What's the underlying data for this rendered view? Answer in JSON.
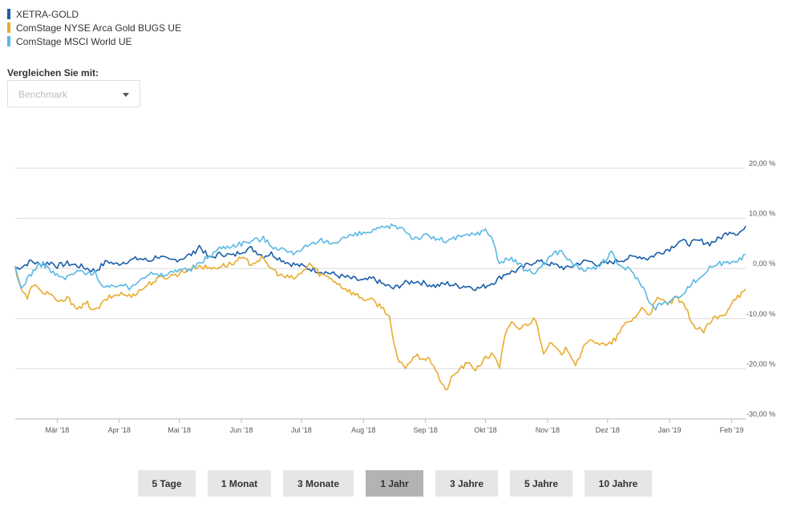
{
  "legend": [
    {
      "label": "XETRA-GOLD",
      "color": "#1a5ea8"
    },
    {
      "label": "ComStage NYSE Arca Gold BUGS UE",
      "color": "#e8ab2d"
    },
    {
      "label": "ComStage MSCI World UE",
      "color": "#5ab8e3"
    }
  ],
  "compare": {
    "label": "Vergleichen  Sie mit:",
    "placeholder": "Benchmark",
    "caret_icon": "chevron-down-icon"
  },
  "range_buttons": [
    {
      "label": "5 Tage",
      "active": false
    },
    {
      "label": "1 Monat",
      "active": false
    },
    {
      "label": "3 Monate",
      "active": false
    },
    {
      "label": "1 Jahr",
      "active": true
    },
    {
      "label": "3 Jahre",
      "active": false
    },
    {
      "label": "5 Jahre",
      "active": false
    },
    {
      "label": "10 Jahre",
      "active": false
    }
  ],
  "chart_data": {
    "type": "line",
    "x_domain": [
      "2018-02-08",
      "2019-02-08"
    ],
    "ylim": [
      -30,
      20
    ],
    "y_ticks": [
      20,
      10,
      0,
      -10,
      -20,
      -30
    ],
    "y_tick_labels": [
      "20,00 %",
      "10,00 %",
      "0,00 %",
      "-10,00 %",
      "-20,00 %",
      "-30,00 %"
    ],
    "x_ticks": [
      {
        "date": "2018-03-01",
        "label": "Mär '18"
      },
      {
        "date": "2018-04-01",
        "label": "Apr '18"
      },
      {
        "date": "2018-05-01",
        "label": "Mai '18"
      },
      {
        "date": "2018-06-01",
        "label": "Jun '18"
      },
      {
        "date": "2018-07-01",
        "label": "Jul '18"
      },
      {
        "date": "2018-08-01",
        "label": "Aug '18"
      },
      {
        "date": "2018-09-01",
        "label": "Sep '18"
      },
      {
        "date": "2018-10-01",
        "label": "Okt '18"
      },
      {
        "date": "2018-11-01",
        "label": "Nov '18"
      },
      {
        "date": "2018-12-01",
        "label": "Dez '18"
      },
      {
        "date": "2019-01-01",
        "label": "Jan '19"
      },
      {
        "date": "2019-02-01",
        "label": "Feb '19"
      }
    ],
    "grid": "horizontal",
    "series": [
      {
        "name": "XETRA-GOLD",
        "color": "#1a5ea8",
        "points": [
          [
            "2018-02-08",
            0
          ],
          [
            "2018-02-12",
            0.5
          ],
          [
            "2018-02-16",
            1.5
          ],
          [
            "2018-02-20",
            0.8
          ],
          [
            "2018-02-26",
            1.2
          ],
          [
            "2018-03-01",
            0.5
          ],
          [
            "2018-03-06",
            1.0
          ],
          [
            "2018-03-12",
            0.5
          ],
          [
            "2018-03-16",
            0.0
          ],
          [
            "2018-03-20",
            -0.5
          ],
          [
            "2018-03-26",
            1.5
          ],
          [
            "2018-03-30",
            0.8
          ],
          [
            "2018-04-05",
            1.5
          ],
          [
            "2018-04-11",
            2.0
          ],
          [
            "2018-04-16",
            1.5
          ],
          [
            "2018-04-20",
            2.5
          ],
          [
            "2018-04-26",
            1.5
          ],
          [
            "2018-05-02",
            2.0
          ],
          [
            "2018-05-08",
            3.0
          ],
          [
            "2018-05-11",
            4.5
          ],
          [
            "2018-05-16",
            2.0
          ],
          [
            "2018-05-22",
            3.0
          ],
          [
            "2018-05-28",
            2.5
          ],
          [
            "2018-06-01",
            3.5
          ],
          [
            "2018-06-06",
            4.0
          ],
          [
            "2018-06-12",
            2.5
          ],
          [
            "2018-06-16",
            3.0
          ],
          [
            "2018-06-20",
            2.0
          ],
          [
            "2018-06-25",
            1.0
          ],
          [
            "2018-07-01",
            0.5
          ],
          [
            "2018-07-05",
            0.0
          ],
          [
            "2018-07-10",
            -0.5
          ],
          [
            "2018-07-16",
            -1.0
          ],
          [
            "2018-07-20",
            -1.5
          ],
          [
            "2018-07-26",
            -2.0
          ],
          [
            "2018-08-01",
            -2.5
          ],
          [
            "2018-08-06",
            -2.0
          ],
          [
            "2018-08-10",
            -3.0
          ],
          [
            "2018-08-16",
            -4.0
          ],
          [
            "2018-08-21",
            -3.0
          ],
          [
            "2018-08-27",
            -2.5
          ],
          [
            "2018-09-01",
            -3.0
          ],
          [
            "2018-09-06",
            -3.5
          ],
          [
            "2018-09-12",
            -3.0
          ],
          [
            "2018-09-17",
            -3.5
          ],
          [
            "2018-09-22",
            -3.5
          ],
          [
            "2018-09-27",
            -4.0
          ],
          [
            "2018-10-01",
            -3.5
          ],
          [
            "2018-10-06",
            -2.5
          ],
          [
            "2018-10-11",
            -1.0
          ],
          [
            "2018-10-16",
            -0.5
          ],
          [
            "2018-10-21",
            0.5
          ],
          [
            "2018-10-26",
            1.5
          ],
          [
            "2018-11-01",
            1.0
          ],
          [
            "2018-11-06",
            0.5
          ],
          [
            "2018-11-11",
            0.0
          ],
          [
            "2018-11-16",
            1.0
          ],
          [
            "2018-11-21",
            1.5
          ],
          [
            "2018-11-27",
            0.8
          ],
          [
            "2018-12-01",
            1.0
          ],
          [
            "2018-12-05",
            1.5
          ],
          [
            "2018-12-11",
            2.0
          ],
          [
            "2018-12-16",
            2.5
          ],
          [
            "2018-12-21",
            2.0
          ],
          [
            "2018-12-26",
            3.0
          ],
          [
            "2019-01-01",
            4.0
          ],
          [
            "2019-01-06",
            5.5
          ],
          [
            "2019-01-11",
            5.0
          ],
          [
            "2019-01-16",
            5.5
          ],
          [
            "2019-01-21",
            5.0
          ],
          [
            "2019-01-26",
            6.0
          ],
          [
            "2019-01-31",
            7.5
          ],
          [
            "2019-02-04",
            7.0
          ],
          [
            "2019-02-08",
            8.0
          ]
        ]
      },
      {
        "name": "ComStage NYSE Arca Gold BUGS UE",
        "color": "#e8ab2d",
        "points": [
          [
            "2018-02-08",
            0
          ],
          [
            "2018-02-11",
            -4.0
          ],
          [
            "2018-02-14",
            -6.0
          ],
          [
            "2018-02-17",
            -3.0
          ],
          [
            "2018-02-20",
            -4.5
          ],
          [
            "2018-02-26",
            -5.0
          ],
          [
            "2018-03-01",
            -7.0
          ],
          [
            "2018-03-06",
            -6.0
          ],
          [
            "2018-03-12",
            -8.0
          ],
          [
            "2018-03-16",
            -7.0
          ],
          [
            "2018-03-20",
            -8.5
          ],
          [
            "2018-03-26",
            -6.0
          ],
          [
            "2018-04-01",
            -5.0
          ],
          [
            "2018-04-06",
            -5.5
          ],
          [
            "2018-04-11",
            -4.5
          ],
          [
            "2018-04-16",
            -3.0
          ],
          [
            "2018-04-21",
            -2.0
          ],
          [
            "2018-04-26",
            -1.5
          ],
          [
            "2018-05-01",
            -1.0
          ],
          [
            "2018-05-06",
            0.0
          ],
          [
            "2018-05-11",
            0.5
          ],
          [
            "2018-05-16",
            0.0
          ],
          [
            "2018-05-22",
            0.5
          ],
          [
            "2018-05-28",
            1.0
          ],
          [
            "2018-06-01",
            2.0
          ],
          [
            "2018-06-06",
            1.0
          ],
          [
            "2018-06-11",
            2.0
          ],
          [
            "2018-06-16",
            0.0
          ],
          [
            "2018-06-21",
            -1.5
          ],
          [
            "2018-06-27",
            -2.0
          ],
          [
            "2018-07-01",
            -1.0
          ],
          [
            "2018-07-05",
            1.0
          ],
          [
            "2018-07-10",
            -1.0
          ],
          [
            "2018-07-16",
            -2.0
          ],
          [
            "2018-07-21",
            -3.5
          ],
          [
            "2018-07-27",
            -5.0
          ],
          [
            "2018-08-01",
            -6.0
          ],
          [
            "2018-08-06",
            -6.5
          ],
          [
            "2018-08-11",
            -8.0
          ],
          [
            "2018-08-14",
            -9.5
          ],
          [
            "2018-08-16",
            -15.0
          ],
          [
            "2018-08-19",
            -19.0
          ],
          [
            "2018-08-22",
            -19.5
          ],
          [
            "2018-08-27",
            -17.5
          ],
          [
            "2018-09-01",
            -18.0
          ],
          [
            "2018-09-05",
            -19.0
          ],
          [
            "2018-09-08",
            -22.0
          ],
          [
            "2018-09-11",
            -24.5
          ],
          [
            "2018-09-14",
            -22.0
          ],
          [
            "2018-09-18",
            -20.0
          ],
          [
            "2018-09-22",
            -19.0
          ],
          [
            "2018-09-26",
            -20.0
          ],
          [
            "2018-10-01",
            -18.0
          ],
          [
            "2018-10-05",
            -17.0
          ],
          [
            "2018-10-08",
            -19.5
          ],
          [
            "2018-10-11",
            -13.0
          ],
          [
            "2018-10-14",
            -11.0
          ],
          [
            "2018-10-18",
            -12.0
          ],
          [
            "2018-10-22",
            -11.0
          ],
          [
            "2018-10-26",
            -10.0
          ],
          [
            "2018-10-30",
            -16.5
          ],
          [
            "2018-11-03",
            -15.0
          ],
          [
            "2018-11-07",
            -17.0
          ],
          [
            "2018-11-11",
            -16.0
          ],
          [
            "2018-11-15",
            -19.0
          ],
          [
            "2018-11-19",
            -16.0
          ],
          [
            "2018-11-23",
            -14.0
          ],
          [
            "2018-11-27",
            -15.0
          ],
          [
            "2018-12-01",
            -15.5
          ],
          [
            "2018-12-05",
            -14.0
          ],
          [
            "2018-12-10",
            -11.0
          ],
          [
            "2018-12-14",
            -10.0
          ],
          [
            "2018-12-18",
            -8.0
          ],
          [
            "2018-12-22",
            -9.0
          ],
          [
            "2018-12-26",
            -6.0
          ],
          [
            "2018-12-31",
            -7.0
          ],
          [
            "2019-01-05",
            -6.0
          ],
          [
            "2019-01-09",
            -8.0
          ],
          [
            "2019-01-14",
            -12.0
          ],
          [
            "2019-01-18",
            -12.5
          ],
          [
            "2019-01-23",
            -10.0
          ],
          [
            "2019-01-28",
            -9.5
          ],
          [
            "2019-02-02",
            -6.0
          ],
          [
            "2019-02-08",
            -4.5
          ]
        ]
      },
      {
        "name": "ComStage MSCI World UE",
        "color": "#5ab8e3",
        "points": [
          [
            "2018-02-08",
            0
          ],
          [
            "2018-02-11",
            -4.0
          ],
          [
            "2018-02-14",
            -2.0
          ],
          [
            "2018-02-18",
            0.0
          ],
          [
            "2018-02-22",
            1.0
          ],
          [
            "2018-02-26",
            -0.5
          ],
          [
            "2018-03-01",
            -1.5
          ],
          [
            "2018-03-05",
            -2.0
          ],
          [
            "2018-03-09",
            -1.0
          ],
          [
            "2018-03-13",
            -0.5
          ],
          [
            "2018-03-17",
            -1.0
          ],
          [
            "2018-03-20",
            -0.5
          ],
          [
            "2018-03-23",
            -3.5
          ],
          [
            "2018-03-27",
            -4.0
          ],
          [
            "2018-04-01",
            -3.0
          ],
          [
            "2018-04-06",
            -4.0
          ],
          [
            "2018-04-11",
            -2.0
          ],
          [
            "2018-04-16",
            -1.0
          ],
          [
            "2018-04-21",
            -1.5
          ],
          [
            "2018-04-26",
            -1.0
          ],
          [
            "2018-05-01",
            0.0
          ],
          [
            "2018-05-06",
            -0.5
          ],
          [
            "2018-05-11",
            1.0
          ],
          [
            "2018-05-16",
            2.5
          ],
          [
            "2018-05-21",
            4.0
          ],
          [
            "2018-05-26",
            4.5
          ],
          [
            "2018-06-01",
            5.0
          ],
          [
            "2018-06-06",
            5.5
          ],
          [
            "2018-06-12",
            6.0
          ],
          [
            "2018-06-16",
            4.5
          ],
          [
            "2018-06-21",
            4.0
          ],
          [
            "2018-06-26",
            3.0
          ],
          [
            "2018-07-01",
            4.0
          ],
          [
            "2018-07-06",
            4.5
          ],
          [
            "2018-07-11",
            5.5
          ],
          [
            "2018-07-16",
            5.0
          ],
          [
            "2018-07-21",
            6.0
          ],
          [
            "2018-07-26",
            6.5
          ],
          [
            "2018-08-01",
            7.0
          ],
          [
            "2018-08-06",
            7.5
          ],
          [
            "2018-08-11",
            8.0
          ],
          [
            "2018-08-16",
            8.5
          ],
          [
            "2018-08-21",
            8.0
          ],
          [
            "2018-08-26",
            6.0
          ],
          [
            "2018-09-01",
            6.5
          ],
          [
            "2018-09-06",
            6.0
          ],
          [
            "2018-09-11",
            5.5
          ],
          [
            "2018-09-16",
            6.0
          ],
          [
            "2018-09-21",
            6.5
          ],
          [
            "2018-09-26",
            7.0
          ],
          [
            "2018-10-01",
            7.5
          ],
          [
            "2018-10-04",
            6.5
          ],
          [
            "2018-10-08",
            1.0
          ],
          [
            "2018-10-12",
            2.0
          ],
          [
            "2018-10-16",
            1.5
          ],
          [
            "2018-10-20",
            0.0
          ],
          [
            "2018-10-25",
            -1.0
          ],
          [
            "2018-10-30",
            1.0
          ],
          [
            "2018-11-04",
            3.0
          ],
          [
            "2018-11-08",
            3.5
          ],
          [
            "2018-11-13",
            1.0
          ],
          [
            "2018-11-18",
            0.0
          ],
          [
            "2018-11-23",
            -0.5
          ],
          [
            "2018-11-28",
            1.0
          ],
          [
            "2018-12-03",
            3.0
          ],
          [
            "2018-12-07",
            0.5
          ],
          [
            "2018-12-11",
            0.0
          ],
          [
            "2018-12-15",
            -1.5
          ],
          [
            "2018-12-19",
            -4.0
          ],
          [
            "2018-12-24",
            -8.0
          ],
          [
            "2018-12-28",
            -7.0
          ],
          [
            "2019-01-02",
            -6.5
          ],
          [
            "2019-01-07",
            -5.0
          ],
          [
            "2019-01-12",
            -3.0
          ],
          [
            "2019-01-17",
            -1.5
          ],
          [
            "2019-01-22",
            0.5
          ],
          [
            "2019-01-27",
            1.0
          ],
          [
            "2019-02-01",
            1.5
          ],
          [
            "2019-02-08",
            2.5
          ]
        ]
      }
    ]
  }
}
